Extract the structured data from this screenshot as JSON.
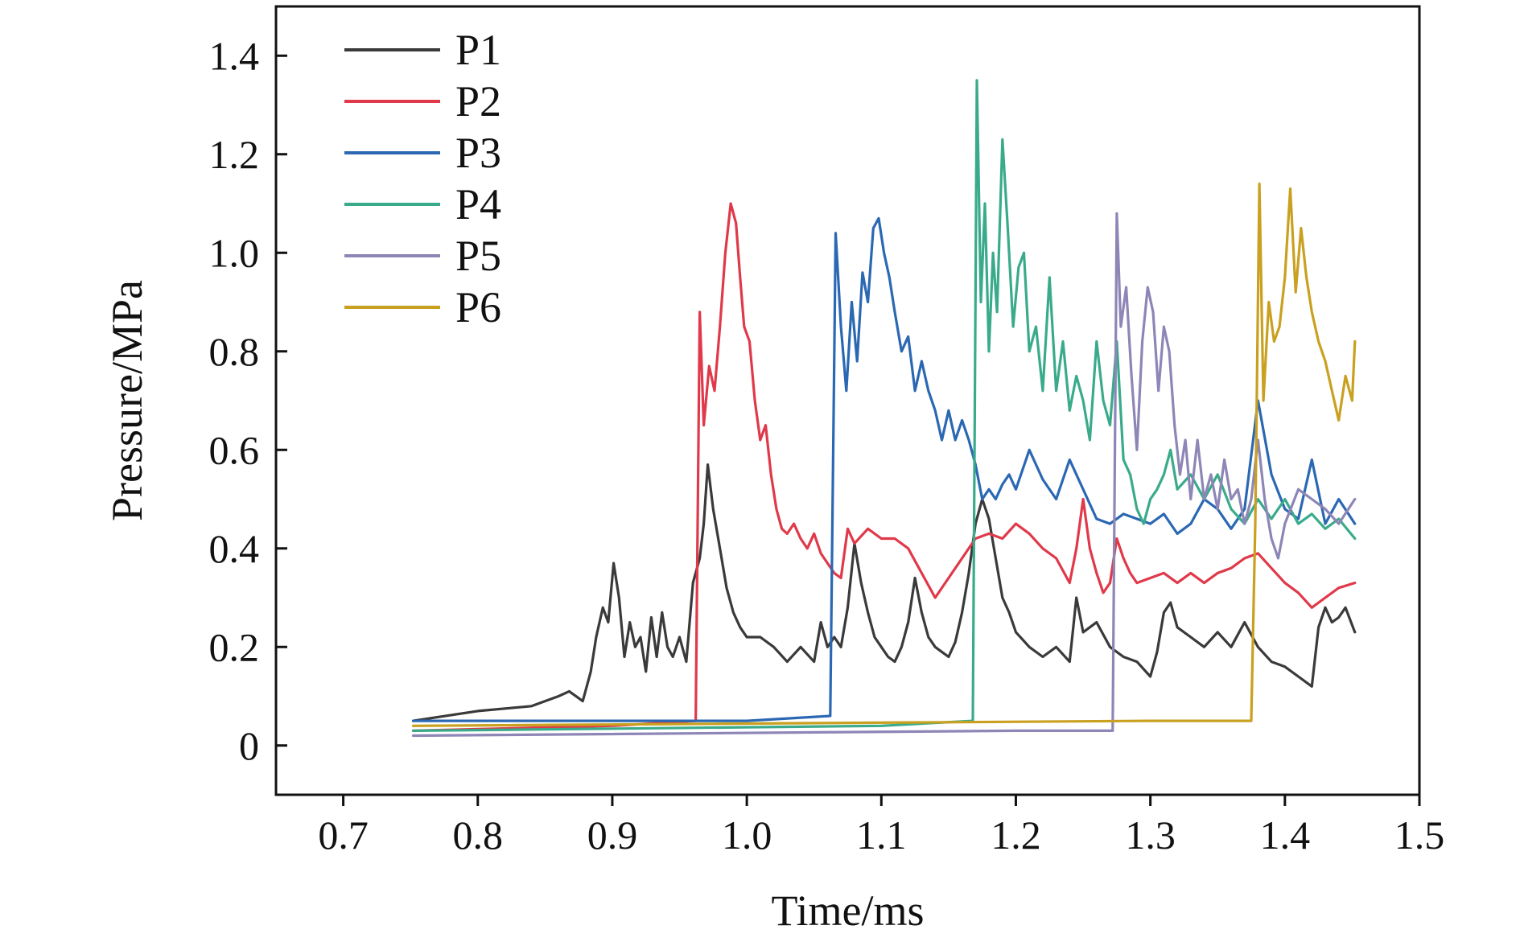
{
  "chart_data": {
    "type": "line",
    "title": "",
    "xlabel": "Time/ms",
    "ylabel": "Pressure/MPa",
    "xlim": [
      0.65,
      1.5
    ],
    "ylim": [
      -0.1,
      1.5
    ],
    "xticks": [
      0.7,
      0.8,
      0.9,
      1.0,
      1.1,
      1.2,
      1.3,
      1.4,
      1.5
    ],
    "xtick_labels": [
      "0.7",
      "0.8",
      "0.9",
      "1.0",
      "1.1",
      "1.2",
      "1.3",
      "1.4",
      "1.5"
    ],
    "yticks": [
      0,
      0.2,
      0.4,
      0.6,
      0.8,
      1.0,
      1.2,
      1.4
    ],
    "ytick_labels": [
      "0",
      "0.2",
      "0.4",
      "0.6",
      "0.8",
      "1.0",
      "1.2",
      "1.4"
    ],
    "legend_position": "top-left",
    "grid": false,
    "series": [
      {
        "name": "P1",
        "color": "#3a3a3a",
        "x": [
          0.752,
          0.8,
          0.84,
          0.86,
          0.868,
          0.878,
          0.884,
          0.888,
          0.893,
          0.897,
          0.901,
          0.905,
          0.909,
          0.913,
          0.917,
          0.921,
          0.925,
          0.929,
          0.933,
          0.937,
          0.941,
          0.945,
          0.95,
          0.955,
          0.96,
          0.965,
          0.968,
          0.971,
          0.975,
          0.98,
          0.985,
          0.99,
          0.995,
          1.0,
          1.01,
          1.02,
          1.03,
          1.04,
          1.05,
          1.055,
          1.06,
          1.065,
          1.07,
          1.075,
          1.08,
          1.085,
          1.09,
          1.095,
          1.1,
          1.105,
          1.11,
          1.115,
          1.12,
          1.125,
          1.13,
          1.135,
          1.14,
          1.145,
          1.15,
          1.155,
          1.16,
          1.165,
          1.17,
          1.175,
          1.18,
          1.185,
          1.19,
          1.195,
          1.2,
          1.21,
          1.22,
          1.23,
          1.24,
          1.245,
          1.25,
          1.26,
          1.27,
          1.28,
          1.29,
          1.3,
          1.305,
          1.31,
          1.315,
          1.32,
          1.33,
          1.34,
          1.35,
          1.36,
          1.37,
          1.38,
          1.39,
          1.4,
          1.41,
          1.42,
          1.425,
          1.43,
          1.435,
          1.44,
          1.445,
          1.452
        ],
        "y": [
          0.05,
          0.07,
          0.08,
          0.1,
          0.11,
          0.09,
          0.15,
          0.22,
          0.28,
          0.25,
          0.37,
          0.3,
          0.18,
          0.25,
          0.2,
          0.22,
          0.15,
          0.26,
          0.18,
          0.27,
          0.2,
          0.18,
          0.22,
          0.17,
          0.33,
          0.38,
          0.45,
          0.57,
          0.48,
          0.4,
          0.32,
          0.27,
          0.24,
          0.22,
          0.22,
          0.2,
          0.17,
          0.2,
          0.17,
          0.25,
          0.2,
          0.22,
          0.2,
          0.28,
          0.41,
          0.33,
          0.27,
          0.22,
          0.2,
          0.18,
          0.17,
          0.2,
          0.25,
          0.34,
          0.27,
          0.22,
          0.2,
          0.19,
          0.18,
          0.21,
          0.27,
          0.35,
          0.45,
          0.5,
          0.46,
          0.38,
          0.3,
          0.27,
          0.23,
          0.2,
          0.18,
          0.2,
          0.17,
          0.3,
          0.23,
          0.25,
          0.2,
          0.18,
          0.17,
          0.14,
          0.19,
          0.27,
          0.29,
          0.24,
          0.22,
          0.2,
          0.23,
          0.2,
          0.25,
          0.2,
          0.17,
          0.16,
          0.14,
          0.12,
          0.24,
          0.28,
          0.25,
          0.26,
          0.28,
          0.23
        ]
      },
      {
        "name": "P2",
        "color": "#e0394a",
        "x": [
          0.752,
          0.9,
          0.962,
          0.965,
          0.968,
          0.972,
          0.976,
          0.98,
          0.984,
          0.988,
          0.992,
          0.995,
          0.998,
          1.002,
          1.006,
          1.01,
          1.014,
          1.018,
          1.022,
          1.026,
          1.03,
          1.035,
          1.04,
          1.045,
          1.05,
          1.055,
          1.06,
          1.065,
          1.07,
          1.075,
          1.08,
          1.09,
          1.1,
          1.11,
          1.12,
          1.13,
          1.14,
          1.15,
          1.16,
          1.17,
          1.18,
          1.19,
          1.2,
          1.21,
          1.22,
          1.23,
          1.24,
          1.245,
          1.25,
          1.255,
          1.26,
          1.265,
          1.27,
          1.275,
          1.28,
          1.285,
          1.29,
          1.3,
          1.31,
          1.32,
          1.33,
          1.34,
          1.35,
          1.36,
          1.37,
          1.38,
          1.39,
          1.4,
          1.41,
          1.42,
          1.43,
          1.44,
          1.452
        ],
        "y": [
          0.03,
          0.04,
          0.05,
          0.88,
          0.65,
          0.77,
          0.72,
          0.85,
          1.0,
          1.1,
          1.06,
          0.95,
          0.85,
          0.82,
          0.7,
          0.62,
          0.65,
          0.55,
          0.48,
          0.44,
          0.43,
          0.45,
          0.42,
          0.4,
          0.43,
          0.39,
          0.37,
          0.35,
          0.34,
          0.44,
          0.41,
          0.44,
          0.42,
          0.42,
          0.4,
          0.35,
          0.3,
          0.34,
          0.38,
          0.42,
          0.43,
          0.42,
          0.45,
          0.43,
          0.4,
          0.38,
          0.33,
          0.4,
          0.5,
          0.4,
          0.35,
          0.31,
          0.33,
          0.42,
          0.38,
          0.35,
          0.33,
          0.34,
          0.35,
          0.33,
          0.35,
          0.33,
          0.35,
          0.36,
          0.38,
          0.39,
          0.36,
          0.33,
          0.31,
          0.28,
          0.3,
          0.32,
          0.33
        ]
      },
      {
        "name": "P3",
        "color": "#2b68b3",
        "x": [
          0.752,
          1.0,
          1.062,
          1.066,
          1.07,
          1.074,
          1.078,
          1.082,
          1.086,
          1.09,
          1.094,
          1.098,
          1.102,
          1.106,
          1.11,
          1.115,
          1.12,
          1.125,
          1.13,
          1.135,
          1.14,
          1.145,
          1.15,
          1.155,
          1.16,
          1.165,
          1.17,
          1.175,
          1.18,
          1.185,
          1.19,
          1.195,
          1.2,
          1.21,
          1.22,
          1.23,
          1.24,
          1.25,
          1.26,
          1.27,
          1.28,
          1.29,
          1.3,
          1.31,
          1.32,
          1.33,
          1.34,
          1.35,
          1.36,
          1.37,
          1.38,
          1.39,
          1.4,
          1.41,
          1.42,
          1.43,
          1.44,
          1.452
        ],
        "y": [
          0.05,
          0.05,
          0.06,
          1.04,
          0.85,
          0.72,
          0.9,
          0.78,
          0.96,
          0.9,
          1.05,
          1.07,
          1.0,
          0.95,
          0.88,
          0.8,
          0.83,
          0.72,
          0.78,
          0.72,
          0.68,
          0.62,
          0.68,
          0.62,
          0.66,
          0.62,
          0.57,
          0.5,
          0.52,
          0.5,
          0.53,
          0.55,
          0.52,
          0.6,
          0.54,
          0.5,
          0.58,
          0.52,
          0.46,
          0.45,
          0.47,
          0.46,
          0.45,
          0.47,
          0.43,
          0.45,
          0.5,
          0.48,
          0.44,
          0.48,
          0.7,
          0.55,
          0.48,
          0.46,
          0.58,
          0.45,
          0.5,
          0.45
        ]
      },
      {
        "name": "P4",
        "color": "#3aab8a",
        "x": [
          0.752,
          1.1,
          1.168,
          1.171,
          1.174,
          1.177,
          1.18,
          1.183,
          1.186,
          1.19,
          1.194,
          1.198,
          1.202,
          1.206,
          1.21,
          1.215,
          1.22,
          1.225,
          1.23,
          1.235,
          1.24,
          1.245,
          1.25,
          1.255,
          1.26,
          1.265,
          1.27,
          1.275,
          1.28,
          1.285,
          1.29,
          1.295,
          1.3,
          1.305,
          1.31,
          1.315,
          1.32,
          1.33,
          1.34,
          1.35,
          1.36,
          1.37,
          1.38,
          1.39,
          1.4,
          1.41,
          1.42,
          1.43,
          1.44,
          1.452
        ],
        "y": [
          0.03,
          0.04,
          0.05,
          1.35,
          0.9,
          1.1,
          0.8,
          1.0,
          0.88,
          1.23,
          1.05,
          0.85,
          0.97,
          1.0,
          0.8,
          0.85,
          0.72,
          0.95,
          0.72,
          0.82,
          0.68,
          0.75,
          0.7,
          0.62,
          0.82,
          0.7,
          0.65,
          0.82,
          0.58,
          0.55,
          0.48,
          0.45,
          0.5,
          0.52,
          0.55,
          0.6,
          0.52,
          0.55,
          0.5,
          0.55,
          0.48,
          0.45,
          0.5,
          0.46,
          0.5,
          0.45,
          0.47,
          0.44,
          0.46,
          0.42
        ]
      },
      {
        "name": "P5",
        "color": "#8d86b6",
        "x": [
          0.752,
          1.2,
          1.272,
          1.275,
          1.278,
          1.282,
          1.286,
          1.29,
          1.294,
          1.298,
          1.302,
          1.306,
          1.31,
          1.314,
          1.318,
          1.322,
          1.326,
          1.33,
          1.335,
          1.34,
          1.345,
          1.35,
          1.355,
          1.36,
          1.365,
          1.37,
          1.375,
          1.38,
          1.385,
          1.39,
          1.395,
          1.4,
          1.41,
          1.42,
          1.43,
          1.44,
          1.452
        ],
        "y": [
          0.02,
          0.03,
          0.03,
          1.08,
          0.85,
          0.93,
          0.75,
          0.6,
          0.82,
          0.93,
          0.88,
          0.72,
          0.85,
          0.8,
          0.65,
          0.55,
          0.62,
          0.5,
          0.62,
          0.5,
          0.55,
          0.48,
          0.58,
          0.5,
          0.52,
          0.45,
          0.5,
          0.62,
          0.5,
          0.42,
          0.38,
          0.45,
          0.52,
          0.5,
          0.48,
          0.45,
          0.5
        ]
      },
      {
        "name": "P6",
        "color": "#c9a020",
        "x": [
          0.752,
          1.3,
          1.375,
          1.378,
          1.381,
          1.384,
          1.388,
          1.392,
          1.396,
          1.4,
          1.404,
          1.408,
          1.412,
          1.416,
          1.42,
          1.425,
          1.43,
          1.435,
          1.44,
          1.445,
          1.45,
          1.452
        ],
        "y": [
          0.04,
          0.05,
          0.05,
          0.45,
          1.14,
          0.7,
          0.9,
          0.82,
          0.85,
          0.95,
          1.13,
          0.92,
          1.05,
          0.95,
          0.88,
          0.82,
          0.78,
          0.72,
          0.66,
          0.75,
          0.7,
          0.82
        ]
      }
    ]
  }
}
